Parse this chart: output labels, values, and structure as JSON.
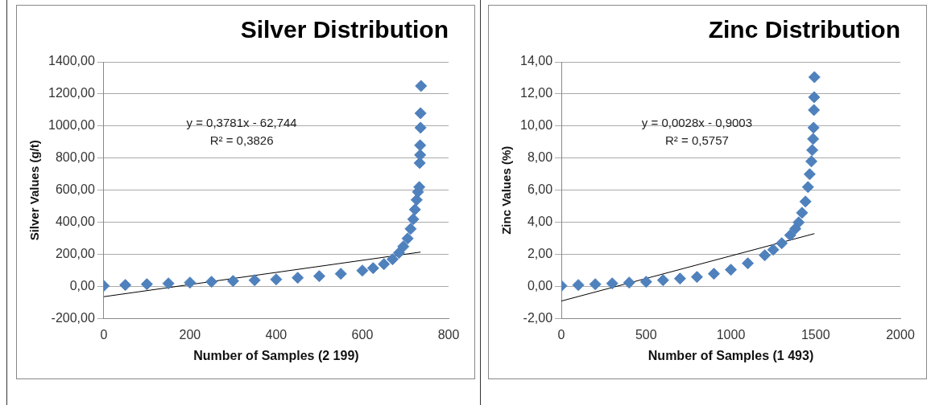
{
  "chart_data": [
    {
      "type": "scatter",
      "title": "Silver Distribution",
      "xlabel": "Number of Samples (2 199)",
      "ylabel": "Silver Values (g/t)",
      "annotations": [
        "y = 0,3781x - 62,744",
        "R² = 0,3826"
      ],
      "series": [
        {
          "color": "#4f81bd",
          "marker": "diamond",
          "x": [
            0,
            50,
            100,
            150,
            200,
            250,
            300,
            350,
            400,
            450,
            500,
            550,
            600,
            625,
            650,
            670,
            685,
            695,
            705,
            712,
            718,
            722,
            726,
            729,
            732,
            733,
            734,
            734,
            735,
            735,
            736
          ],
          "values": [
            5,
            10,
            15,
            20,
            25,
            30,
            35,
            40,
            45,
            55,
            65,
            80,
            100,
            115,
            140,
            170,
            210,
            250,
            300,
            360,
            420,
            480,
            540,
            590,
            620,
            770,
            820,
            880,
            990,
            1080,
            1250
          ]
        },
        {
          "type": "line",
          "color": "#000000",
          "marker": "none",
          "x": [
            0,
            735
          ],
          "values": [
            -63,
            215
          ]
        }
      ],
      "xlim": [
        0,
        800
      ],
      "xticks": [
        0,
        200,
        400,
        600,
        800
      ],
      "ylim": [
        -200,
        1400
      ],
      "yticks": [
        {
          "value": -200,
          "label": "-200,00"
        },
        {
          "value": 0,
          "label": "0,00"
        },
        {
          "value": 200,
          "label": "200,00"
        },
        {
          "value": 400,
          "label": "400,00"
        },
        {
          "value": 600,
          "label": "600,00"
        },
        {
          "value": 800,
          "label": "800,00"
        },
        {
          "value": 1000,
          "label": "1000,00"
        },
        {
          "value": 1200,
          "label": "1200,00"
        },
        {
          "value": 1400,
          "label": "1400,00"
        }
      ],
      "grid": "y",
      "legend": false
    },
    {
      "type": "scatter",
      "title": "Zinc Distribution",
      "xlabel": "Number of Samples (1 493)",
      "ylabel": "Zinc Values (%)",
      "annotations": [
        "y = 0,0028x - 0,9003",
        "R² = 0,5757"
      ],
      "series": [
        {
          "color": "#4f81bd",
          "marker": "diamond",
          "x": [
            0,
            100,
            200,
            300,
            400,
            500,
            600,
            700,
            800,
            900,
            1000,
            1100,
            1200,
            1250,
            1300,
            1350,
            1380,
            1400,
            1420,
            1440,
            1455,
            1465,
            1475,
            1480,
            1485,
            1488,
            1490,
            1491,
            1493
          ],
          "values": [
            0.05,
            0.1,
            0.15,
            0.2,
            0.25,
            0.3,
            0.4,
            0.5,
            0.6,
            0.8,
            1.05,
            1.45,
            1.95,
            2.3,
            2.7,
            3.2,
            3.6,
            4.0,
            4.6,
            5.3,
            6.2,
            7.0,
            7.8,
            8.5,
            9.2,
            9.9,
            11.0,
            11.8,
            13.05
          ]
        },
        {
          "type": "line",
          "color": "#000000",
          "marker": "none",
          "x": [
            0,
            1493
          ],
          "values": [
            -0.9,
            3.3
          ]
        }
      ],
      "xlim": [
        0,
        2000
      ],
      "xticks": [
        0,
        500,
        1000,
        1500,
        2000
      ],
      "ylim": [
        -2,
        14
      ],
      "yticks": [
        {
          "value": -2,
          "label": "-2,00"
        },
        {
          "value": 0,
          "label": "0,00"
        },
        {
          "value": 2,
          "label": "2,00"
        },
        {
          "value": 4,
          "label": "4,00"
        },
        {
          "value": 6,
          "label": "6,00"
        },
        {
          "value": 8,
          "label": "8,00"
        },
        {
          "value": 10,
          "label": "10,00"
        },
        {
          "value": 12,
          "label": "12,00"
        },
        {
          "value": 14,
          "label": "14,00"
        }
      ],
      "grid": "y",
      "legend": false
    }
  ]
}
